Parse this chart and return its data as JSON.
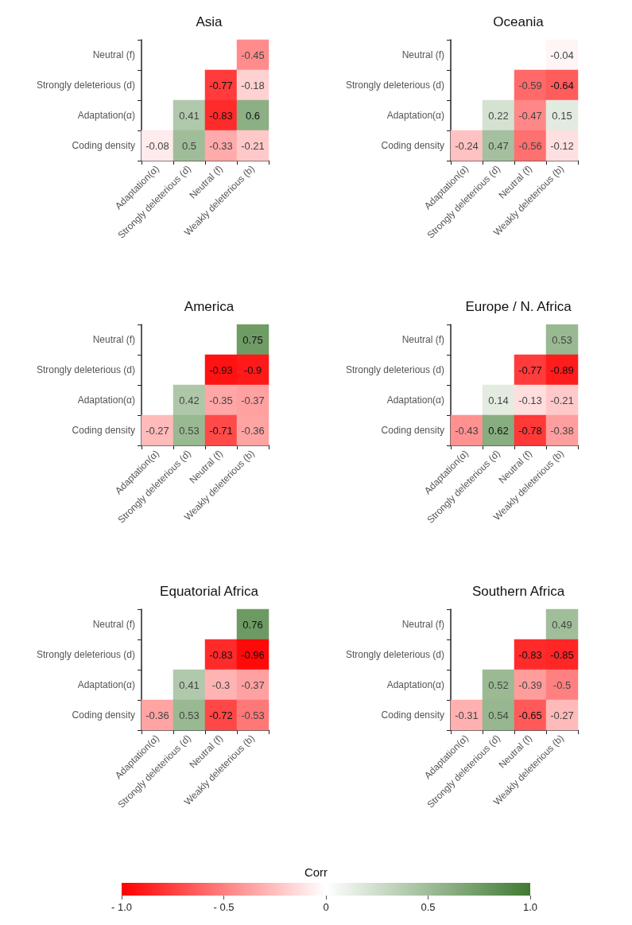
{
  "chart_data": [
    {
      "type": "heatmap",
      "title": "Asia",
      "categories": [
        "Adaptation(α)",
        "Strongly deleterious (d)",
        "Neutral (f)",
        "Weakly deleterious (b)"
      ],
      "y_categories": [
        "Neutral (f)",
        "Strongly deleterious (d)",
        "Adaptation(α)",
        "Coding density"
      ],
      "cells": [
        [
          null,
          null,
          null,
          -0.45
        ],
        [
          null,
          null,
          -0.77,
          -0.18
        ],
        [
          null,
          0.41,
          -0.83,
          0.6
        ],
        [
          -0.08,
          0.5,
          -0.33,
          -0.21
        ]
      ],
      "data_labels": true
    },
    {
      "type": "heatmap",
      "title": "Oceania",
      "categories": [
        "Adaptation(α)",
        "Strongly deleterious (d)",
        "Neutral (f)",
        "Weakly deleterious (b)"
      ],
      "y_categories": [
        "Neutral (f)",
        "Strongly deleterious (d)",
        "Adaptation(α)",
        "Coding density"
      ],
      "cells": [
        [
          null,
          null,
          null,
          -0.04
        ],
        [
          null,
          null,
          -0.59,
          -0.64
        ],
        [
          null,
          0.22,
          -0.47,
          0.15
        ],
        [
          -0.24,
          0.47,
          -0.56,
          -0.12
        ]
      ],
      "data_labels": true
    },
    {
      "type": "heatmap",
      "title": "America",
      "categories": [
        "Adaptation(α)",
        "Strongly deleterious (d)",
        "Neutral (f)",
        "Weakly deleterious (b)"
      ],
      "y_categories": [
        "Neutral (f)",
        "Strongly deleterious (d)",
        "Adaptation(α)",
        "Coding density"
      ],
      "cells": [
        [
          null,
          null,
          null,
          0.75
        ],
        [
          null,
          null,
          -0.93,
          -0.9
        ],
        [
          null,
          0.42,
          -0.35,
          -0.37
        ],
        [
          -0.27,
          0.53,
          -0.71,
          -0.36
        ]
      ],
      "data_labels": true
    },
    {
      "type": "heatmap",
      "title": "Europe / N. Africa",
      "categories": [
        "Adaptation(α)",
        "Strongly deleterious (d)",
        "Neutral (f)",
        "Weakly deleterious (b)"
      ],
      "y_categories": [
        "Neutral (f)",
        "Strongly deleterious (d)",
        "Adaptation(α)",
        "Coding density"
      ],
      "cells": [
        [
          null,
          null,
          null,
          0.53
        ],
        [
          null,
          null,
          -0.77,
          -0.89
        ],
        [
          null,
          0.14,
          -0.13,
          -0.21
        ],
        [
          -0.43,
          0.62,
          -0.78,
          -0.38
        ]
      ],
      "data_labels": true
    },
    {
      "type": "heatmap",
      "title": "Equatorial Africa",
      "categories": [
        "Adaptation(α)",
        "Strongly deleterious (d)",
        "Neutral (f)",
        "Weakly deleterious (b)"
      ],
      "y_categories": [
        "Neutral (f)",
        "Strongly deleterious (d)",
        "Adaptation(α)",
        "Coding density"
      ],
      "cells": [
        [
          null,
          null,
          null,
          0.76
        ],
        [
          null,
          null,
          -0.83,
          -0.96
        ],
        [
          null,
          0.41,
          -0.3,
          -0.37
        ],
        [
          -0.36,
          0.53,
          -0.72,
          -0.53
        ]
      ],
      "data_labels": true
    },
    {
      "type": "heatmap",
      "title": "Southern Africa",
      "categories": [
        "Adaptation(α)",
        "Strongly deleterious (d)",
        "Neutral (f)",
        "Weakly deleterious (b)"
      ],
      "y_categories": [
        "Neutral (f)",
        "Strongly deleterious (d)",
        "Adaptation(α)",
        "Coding density"
      ],
      "cells": [
        [
          null,
          null,
          null,
          0.49
        ],
        [
          null,
          null,
          -0.83,
          -0.85
        ],
        [
          null,
          0.52,
          -0.39,
          -0.5
        ],
        [
          -0.31,
          0.54,
          -0.65,
          -0.27
        ]
      ],
      "data_labels": true,
      "clim": [
        -1,
        1
      ],
      "clabel": "Corr",
      "cticks": [
        {
          "value": -1,
          "label": "- 1.0"
        },
        {
          "value": -0.5,
          "label": "- 0.5"
        },
        0,
        0.5,
        {
          "value": 1,
          "label": "1.0"
        }
      ]
    }
  ]
}
